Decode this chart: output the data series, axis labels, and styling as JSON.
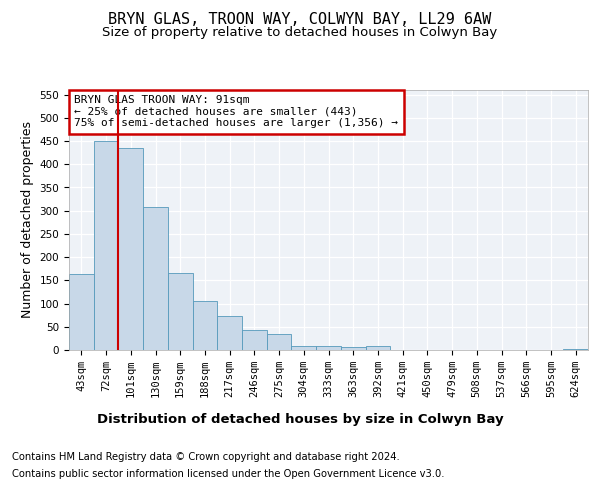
{
  "title": "BRYN GLAS, TROON WAY, COLWYN BAY, LL29 6AW",
  "subtitle": "Size of property relative to detached houses in Colwyn Bay",
  "xlabel": "Distribution of detached houses by size in Colwyn Bay",
  "ylabel": "Number of detached properties",
  "footnote1": "Contains HM Land Registry data © Crown copyright and database right 2024.",
  "footnote2": "Contains public sector information licensed under the Open Government Licence v3.0.",
  "bar_labels": [
    "43sqm",
    "72sqm",
    "101sqm",
    "130sqm",
    "159sqm",
    "188sqm",
    "217sqm",
    "246sqm",
    "275sqm",
    "304sqm",
    "333sqm",
    "363sqm",
    "392sqm",
    "421sqm",
    "450sqm",
    "479sqm",
    "508sqm",
    "537sqm",
    "566sqm",
    "595sqm",
    "624sqm"
  ],
  "bar_values": [
    163,
    450,
    435,
    307,
    165,
    105,
    73,
    44,
    34,
    9,
    8,
    7,
    8,
    1,
    0,
    0,
    0,
    0,
    0,
    0,
    3
  ],
  "bar_color": "#c8d8e8",
  "bar_edge_color": "#5599bb",
  "annotation_text": "BRYN GLAS TROON WAY: 91sqm\n← 25% of detached houses are smaller (443)\n75% of semi-detached houses are larger (1,356) →",
  "annotation_box_color": "#ffffff",
  "annotation_box_edge": "#cc0000",
  "vline_color": "#cc0000",
  "ylim": [
    0,
    560
  ],
  "yticks": [
    0,
    50,
    100,
    150,
    200,
    250,
    300,
    350,
    400,
    450,
    500,
    550
  ],
  "background_color": "#eef2f7",
  "grid_color": "#ffffff",
  "title_fontsize": 11,
  "subtitle_fontsize": 9.5,
  "axis_label_fontsize": 9,
  "tick_fontsize": 7.5,
  "annotation_fontsize": 8
}
